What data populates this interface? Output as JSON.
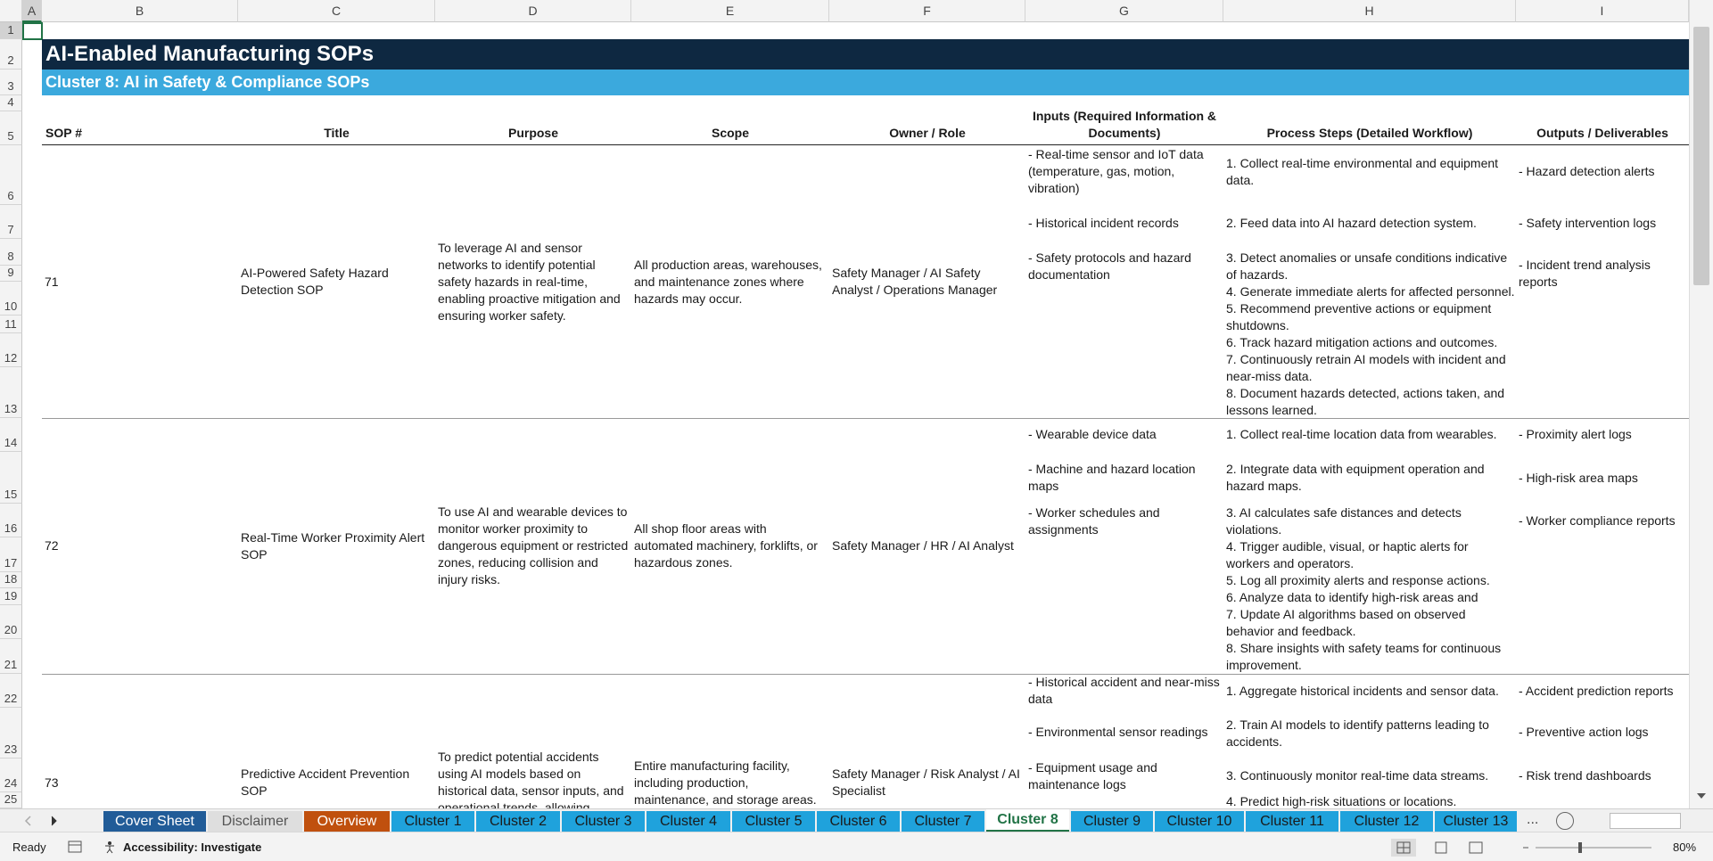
{
  "column_headers": [
    "A",
    "B",
    "C",
    "D",
    "E",
    "F",
    "G",
    "H",
    "I"
  ],
  "row_numbers": [
    1,
    2,
    3,
    4,
    5,
    6,
    7,
    8,
    9,
    10,
    11,
    12,
    13,
    14,
    15,
    16,
    17,
    18,
    19,
    20,
    21,
    22,
    23,
    24,
    25
  ],
  "sheet": {
    "title": "AI-Enabled Manufacturing SOPs",
    "subtitle": "Cluster 8: AI in Safety & Compliance SOPs",
    "table": {
      "headers": [
        "SOP #",
        "Title",
        "Purpose",
        "Scope",
        "Owner / Role",
        "Inputs (Required Information & Documents)",
        "Process Steps (Detailed Workflow)",
        "Outputs / Deliverables"
      ],
      "rows": [
        {
          "sop": "71",
          "title": "AI-Powered Safety Hazard Detection SOP",
          "purpose": "To leverage AI and sensor networks to identify potential safety hazards in real-time, enabling proactive mitigation and ensuring worker safety.",
          "scope": "All production areas, warehouses, and maintenance zones where hazards may occur.",
          "owner": "Safety Manager / AI Safety Analyst / Operations Manager",
          "inputs": [
            "- Real-time sensor and IoT data (temperature, gas, motion, vibration)",
            "- Historical incident records",
            "- Safety protocols and hazard documentation"
          ],
          "steps": [
            "1. Collect real-time environmental and equipment data.",
            "2. Feed data into AI hazard detection system.",
            "3. Detect anomalies or unsafe conditions indicative of hazards.",
            "4. Generate immediate alerts for affected personnel.",
            "5. Recommend preventive actions or equipment shutdowns.",
            "6. Track hazard mitigation actions and outcomes.",
            "7. Continuously retrain AI models with incident and near-miss data.",
            "8. Document hazards detected, actions taken, and lessons learned."
          ],
          "outputs": [
            "- Hazard detection alerts",
            "- Safety intervention logs",
            "- Incident trend analysis reports"
          ]
        },
        {
          "sop": "72",
          "title": "Real-Time Worker Proximity Alert SOP",
          "purpose": "To use AI and wearable devices to monitor worker proximity to dangerous equipment or restricted zones, reducing collision and injury risks.",
          "scope": "All shop floor areas with automated machinery, forklifts, or hazardous zones.",
          "owner": "Safety Manager / HR / AI Analyst",
          "inputs": [
            "- Wearable device data",
            "- Machine and hazard location maps",
            "- Worker schedules and assignments"
          ],
          "steps": [
            "1. Collect real-time location data from wearables.",
            "2. Integrate data with equipment operation and hazard maps.",
            "3. AI calculates safe distances and detects violations.",
            "4. Trigger audible, visual, or haptic alerts for workers and operators.",
            "5. Log all proximity alerts and response actions.",
            "6. Analyze data to identify high-risk areas and",
            "7. Update AI algorithms based on observed behavior and feedback.",
            "8. Share insights with safety teams for continuous improvement."
          ],
          "outputs": [
            "- Proximity alert logs",
            "- High-risk area maps",
            "- Worker compliance reports"
          ]
        },
        {
          "sop": "73",
          "title": "Predictive Accident Prevention SOP",
          "purpose": "To predict potential accidents using AI models based on historical data, sensor inputs, and operational trends, allowing",
          "scope": "Entire manufacturing facility, including production, maintenance, and storage areas.",
          "owner": "Safety Manager / Risk Analyst / AI Specialist",
          "inputs": [
            "- Historical accident and near-miss data",
            "- Environmental sensor readings",
            "- Equipment usage and maintenance logs"
          ],
          "steps": [
            "1. Aggregate historical incidents and sensor data.",
            "2. Train AI models to identify patterns leading to accidents.",
            "3. Continuously monitor real-time data streams.",
            "4. Predict high-risk situations or locations."
          ],
          "outputs": [
            "- Accident prediction reports",
            "- Preventive action logs",
            "- Risk trend dashboards"
          ]
        }
      ]
    }
  },
  "sheet_tabs": [
    "Cover Sheet",
    "Disclaimer",
    "Overview",
    "Cluster 1",
    "Cluster 2",
    "Cluster 3",
    "Cluster 4",
    "Cluster 5",
    "Cluster 6",
    "Cluster 7",
    "Cluster 8",
    "Cluster 9",
    "Cluster 10",
    "Cluster 11",
    "Cluster 12",
    "Cluster 13"
  ],
  "tabs_more": "...",
  "status": {
    "ready": "Ready",
    "accessibility": "Accessibility: Investigate",
    "zoom": "80%"
  }
}
